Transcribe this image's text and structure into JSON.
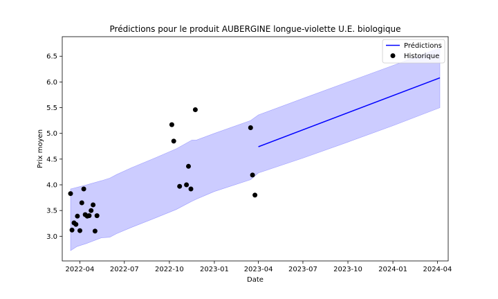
{
  "chart_data": {
    "type": "line",
    "title": "Prédictions pour le produit AUBERGINE longue-violette U.E. biologique",
    "xlabel": "Date",
    "ylabel": "Prix moyen",
    "xlim": [
      "2022-02-24",
      "2024-04-23"
    ],
    "ylim": [
      2.52,
      6.88
    ],
    "xticks": [
      "2022-04",
      "2022-07",
      "2022-10",
      "2023-01",
      "2023-04",
      "2023-07",
      "2023-10",
      "2024-01",
      "2024-04"
    ],
    "yticks": [
      "3.0",
      "3.5",
      "4.0",
      "4.5",
      "5.0",
      "5.5",
      "6.0",
      "6.5"
    ],
    "grid": false,
    "legend": {
      "position": "top-right",
      "entries": [
        {
          "label": "Prédictions",
          "marker": "line",
          "color": "#0000ff"
        },
        {
          "label": "Historique",
          "marker": "dot",
          "color": "#000000"
        }
      ]
    },
    "band": {
      "name": "Intervalle",
      "color": "#0000ff",
      "opacity": 0.2,
      "points": [
        {
          "x": "2022-03-13",
          "low": 2.72,
          "high": 3.92
        },
        {
          "x": "2022-03-26",
          "low": 2.8,
          "high": 3.95
        },
        {
          "x": "2022-04-15",
          "low": 2.86,
          "high": 4.0
        },
        {
          "x": "2022-05-15",
          "low": 2.97,
          "high": 4.08
        },
        {
          "x": "2022-06-01",
          "low": 2.98,
          "high": 4.13
        },
        {
          "x": "2022-06-15",
          "low": 3.05,
          "high": 4.2
        },
        {
          "x": "2022-07-15",
          "low": 3.17,
          "high": 4.33
        },
        {
          "x": "2022-09-01",
          "low": 3.35,
          "high": 4.52
        },
        {
          "x": "2022-10-15",
          "low": 3.52,
          "high": 4.7
        },
        {
          "x": "2022-11-16",
          "low": 3.68,
          "high": 4.87
        },
        {
          "x": "2022-11-25",
          "low": 3.72,
          "high": 4.87
        },
        {
          "x": "2023-01-01",
          "low": 3.87,
          "high": 5.0
        },
        {
          "x": "2023-03-16",
          "low": 4.1,
          "high": 5.25
        },
        {
          "x": "2023-04-01",
          "low": 4.23,
          "high": 5.36
        },
        {
          "x": "2023-07-01",
          "low": 4.52,
          "high": 5.68
        },
        {
          "x": "2023-10-01",
          "low": 4.83,
          "high": 6.0
        },
        {
          "x": "2024-01-01",
          "low": 5.15,
          "high": 6.32
        },
        {
          "x": "2024-04-06",
          "low": 5.5,
          "high": 6.66
        }
      ]
    },
    "series": [
      {
        "name": "Prédictions",
        "kind": "line",
        "color": "#0000ff",
        "points": [
          {
            "x": "2023-04-01",
            "y": 4.74
          },
          {
            "x": "2024-04-06",
            "y": 6.08
          }
        ]
      },
      {
        "name": "Historique",
        "kind": "scatter",
        "color": "#000000",
        "points": [
          {
            "x": "2022-03-13",
            "y": 3.83
          },
          {
            "x": "2022-03-16",
            "y": 3.12
          },
          {
            "x": "2022-03-20",
            "y": 3.26
          },
          {
            "x": "2022-03-24",
            "y": 3.23
          },
          {
            "x": "2022-03-27",
            "y": 3.39
          },
          {
            "x": "2022-04-01",
            "y": 3.11
          },
          {
            "x": "2022-04-05",
            "y": 3.65
          },
          {
            "x": "2022-04-09",
            "y": 3.92
          },
          {
            "x": "2022-04-12",
            "y": 3.42
          },
          {
            "x": "2022-04-16",
            "y": 3.39
          },
          {
            "x": "2022-04-20",
            "y": 3.4
          },
          {
            "x": "2022-04-24",
            "y": 3.5
          },
          {
            "x": "2022-04-28",
            "y": 3.61
          },
          {
            "x": "2022-05-02",
            "y": 3.1
          },
          {
            "x": "2022-05-06",
            "y": 3.4
          },
          {
            "x": "2022-10-06",
            "y": 5.17
          },
          {
            "x": "2022-10-10",
            "y": 4.85
          },
          {
            "x": "2022-10-22",
            "y": 3.97
          },
          {
            "x": "2022-11-05",
            "y": 4.0
          },
          {
            "x": "2022-11-09",
            "y": 4.36
          },
          {
            "x": "2022-11-14",
            "y": 3.92
          },
          {
            "x": "2022-11-23",
            "y": 5.46
          },
          {
            "x": "2023-03-16",
            "y": 5.11
          },
          {
            "x": "2023-03-20",
            "y": 4.19
          },
          {
            "x": "2023-03-25",
            "y": 3.8
          }
        ]
      }
    ]
  }
}
